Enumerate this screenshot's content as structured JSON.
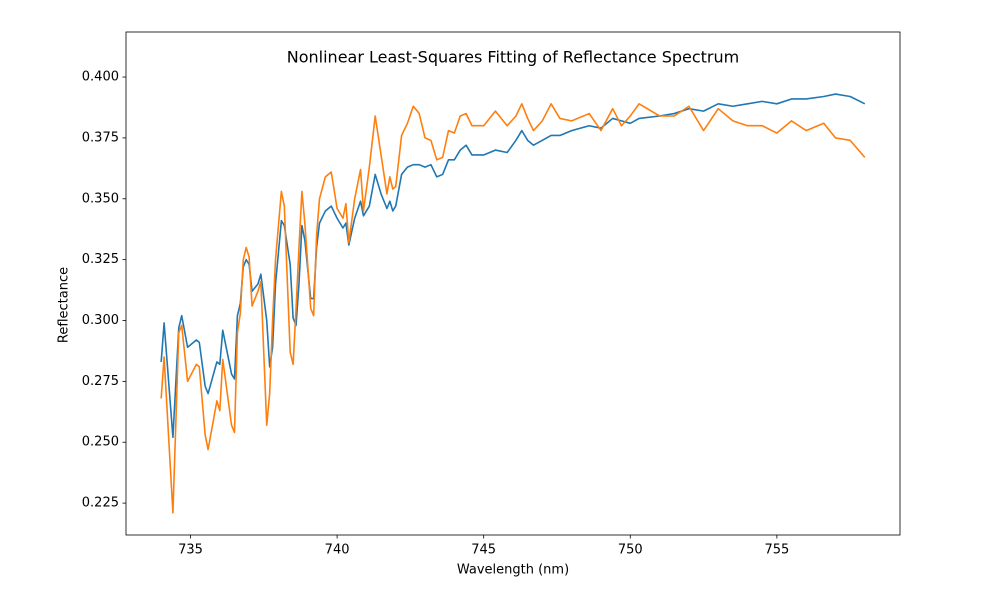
{
  "chart_data": {
    "type": "line",
    "title": "Nonlinear Least-Squares Fitting of Reflectance Spectrum",
    "xlabel": "Wavelength (nm)",
    "ylabel": "Reflectance",
    "xlim": [
      732.8,
      759.2
    ],
    "ylim": [
      0.2119,
      0.4185
    ],
    "xticks": [
      735,
      740,
      745,
      750,
      755
    ],
    "yticks": [
      0.225,
      {
        "value": 0.25,
        "label": "0.250"
      },
      0.275,
      {
        "value": 0.3,
        "label": "0.300"
      },
      0.325,
      {
        "value": 0.35,
        "label": "0.350"
      },
      0.375,
      {
        "value": 0.4,
        "label": "0.400"
      }
    ],
    "x": [
      734.0,
      734.1,
      734.4,
      734.6,
      734.7,
      734.9,
      735.2,
      735.3,
      735.5,
      735.6,
      735.9,
      736.0,
      736.1,
      736.4,
      736.5,
      736.6,
      736.7,
      736.8,
      736.9,
      737.0,
      737.1,
      737.3,
      737.4,
      737.6,
      737.7,
      737.8,
      737.9,
      738.1,
      738.2,
      738.4,
      738.5,
      738.6,
      738.7,
      738.8,
      738.9,
      739.1,
      739.2,
      739.3,
      739.4,
      739.6,
      739.8,
      740.0,
      740.2,
      740.3,
      740.4,
      740.6,
      740.8,
      740.9,
      741.1,
      741.3,
      741.5,
      741.7,
      741.8,
      741.9,
      742.0,
      742.2,
      742.4,
      742.6,
      742.8,
      743.0,
      743.2,
      743.4,
      743.6,
      743.8,
      744.0,
      744.2,
      744.4,
      744.6,
      745.0,
      745.4,
      745.8,
      746.1,
      746.3,
      746.5,
      746.7,
      747.0,
      747.3,
      747.6,
      748.0,
      748.6,
      749.0,
      749.4,
      749.7,
      750.0,
      750.3,
      751.0,
      751.5,
      752.0,
      752.5,
      753.0,
      753.5,
      754.0,
      754.5,
      755.0,
      755.5,
      756.0,
      756.6,
      757.0,
      757.5,
      758.0
    ],
    "series": [
      {
        "color": "#1f77b4",
        "values": [
          0.283,
          0.299,
          0.252,
          0.297,
          0.302,
          0.289,
          0.292,
          0.291,
          0.273,
          0.27,
          0.283,
          0.282,
          0.296,
          0.278,
          0.276,
          0.302,
          0.307,
          0.322,
          0.325,
          0.323,
          0.312,
          0.315,
          0.319,
          0.3,
          0.281,
          0.289,
          0.315,
          0.341,
          0.339,
          0.323,
          0.301,
          0.298,
          0.315,
          0.339,
          0.333,
          0.309,
          0.309,
          0.33,
          0.34,
          0.345,
          0.347,
          0.342,
          0.338,
          0.34,
          0.331,
          0.342,
          0.349,
          0.343,
          0.347,
          0.36,
          0.352,
          0.346,
          0.349,
          0.345,
          0.347,
          0.36,
          0.363,
          0.364,
          0.364,
          0.363,
          0.364,
          0.359,
          0.36,
          0.366,
          0.366,
          0.37,
          0.372,
          0.368,
          0.368,
          0.37,
          0.369,
          0.374,
          0.378,
          0.374,
          0.372,
          0.374,
          0.376,
          0.376,
          0.378,
          0.38,
          0.379,
          0.383,
          0.382,
          0.381,
          0.383,
          0.384,
          0.385,
          0.387,
          0.386,
          0.389,
          0.388,
          0.389,
          0.39,
          0.389,
          0.391,
          0.391,
          0.392,
          0.393,
          0.392,
          0.389
        ]
      },
      {
        "color": "#ff7f0e",
        "values": [
          0.268,
          0.285,
          0.221,
          0.295,
          0.298,
          0.275,
          0.282,
          0.281,
          0.253,
          0.247,
          0.267,
          0.263,
          0.284,
          0.257,
          0.254,
          0.295,
          0.303,
          0.325,
          0.33,
          0.326,
          0.306,
          0.312,
          0.316,
          0.257,
          0.27,
          0.3,
          0.325,
          0.353,
          0.347,
          0.287,
          0.282,
          0.305,
          0.33,
          0.353,
          0.34,
          0.305,
          0.302,
          0.335,
          0.35,
          0.359,
          0.361,
          0.346,
          0.342,
          0.348,
          0.332,
          0.35,
          0.362,
          0.345,
          0.363,
          0.384,
          0.368,
          0.352,
          0.359,
          0.354,
          0.355,
          0.376,
          0.381,
          0.388,
          0.385,
          0.375,
          0.374,
          0.366,
          0.367,
          0.378,
          0.377,
          0.384,
          0.385,
          0.38,
          0.38,
          0.386,
          0.38,
          0.384,
          0.389,
          0.383,
          0.378,
          0.382,
          0.389,
          0.383,
          0.382,
          0.385,
          0.378,
          0.387,
          0.38,
          0.384,
          0.389,
          0.384,
          0.384,
          0.388,
          0.378,
          0.387,
          0.382,
          0.38,
          0.38,
          0.377,
          0.382,
          0.378,
          0.381,
          0.375,
          0.374,
          0.367
        ]
      }
    ]
  }
}
